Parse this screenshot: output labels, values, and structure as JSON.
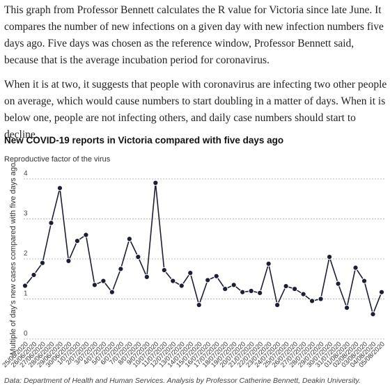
{
  "paragraphs": [
    "This graph from Professor Bennett calculates the R value for Victoria since late June. It compares the number of new infections on a given day with new infection numbers five days ago. Five days was chosen as the reference window, Professor Bennett said, because that is the average incubation period for coronavirus.",
    "When it is at two, it suggests that people with coronavirus are infecting two other people on average, which would cause numbers to start doubling in a matter of days. When it is below one, people are not infecting others, and daily case numbers should start to decline."
  ],
  "chart_data": {
    "type": "line",
    "title": "New COVID-19 reports in Victoria compared with five days ago",
    "subtitle": "Reproductive factor of the virus",
    "y_label": "Multiple of day's new cases compared with five days ago",
    "source": "Data: Department of Health and Human Services. Analysis by Professor Catherine Bennett, Deakin University.",
    "categories": [
      "25/06/2020",
      "26/06/2020",
      "27/06/2020",
      "28/06/2020",
      "29/06/2020",
      "30/06/2020",
      "1/07/2020",
      "2/07/2020",
      "3/07/2020",
      "4/07/2020",
      "5/07/2020",
      "6/07/2020",
      "7/07/2020",
      "8/07/2020",
      "9/07/2020",
      "10/07/2020",
      "11/07/2020",
      "12/07/2020",
      "13/07/2020",
      "14/07/2020",
      "15/07/2020",
      "16/07/2020",
      "17/07/2020",
      "18/07/2020",
      "19/07/2020",
      "20/07/2020",
      "21/07/2020",
      "22/07/2020",
      "23/07/2020",
      "24/07/2020",
      "25/07/2020",
      "26/07/2020",
      "27/07/2020",
      "28/07/2020",
      "29/07/2020",
      "30/07/2020",
      "31/07/2020",
      "01/08/2020",
      "02/08/2020",
      "03/08/2020",
      "04/08/2020",
      "05/08/2020"
    ],
    "values": [
      1.33,
      1.6,
      1.9,
      2.9,
      3.77,
      1.95,
      2.45,
      2.6,
      1.35,
      1.45,
      1.17,
      1.75,
      2.5,
      2.05,
      1.55,
      3.9,
      1.72,
      1.45,
      1.33,
      1.65,
      0.85,
      1.47,
      1.57,
      1.25,
      1.35,
      1.17,
      1.2,
      1.15,
      1.88,
      0.85,
      1.32,
      1.25,
      1.12,
      0.95,
      1.0,
      2.05,
      1.38,
      0.78,
      1.78,
      1.45,
      0.62,
      1.17
    ],
    "color": "#1c1f33",
    "ylim": [
      0,
      4
    ],
    "yticks": [
      0,
      1,
      2,
      3,
      4
    ],
    "grid": true
  }
}
